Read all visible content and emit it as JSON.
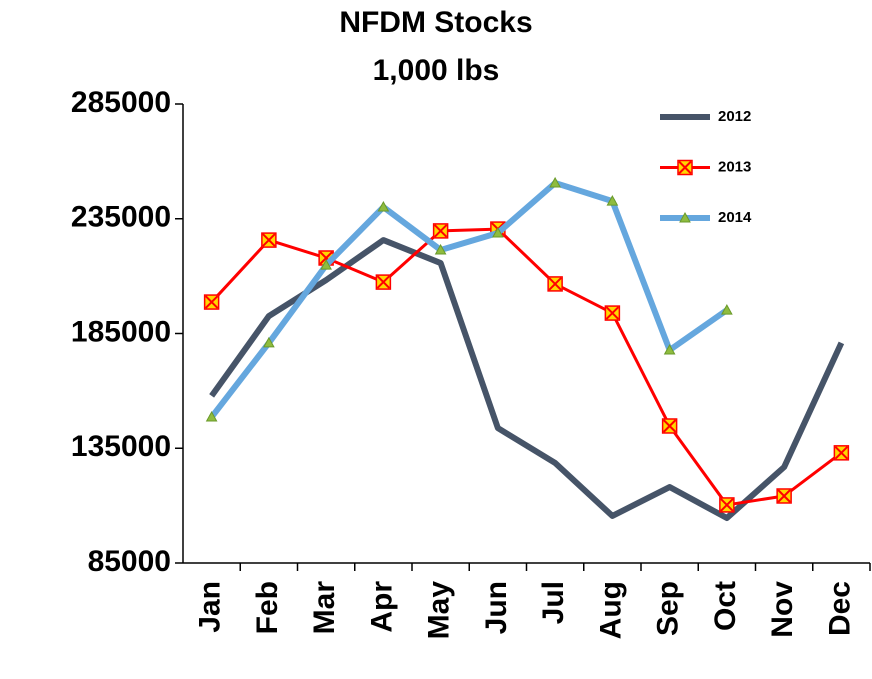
{
  "chart_data": {
    "type": "line",
    "title": "NFDM Stocks",
    "subtitle": "1,000 lbs",
    "categories": [
      "Jan",
      "Feb",
      "Mar",
      "Apr",
      "May",
      "Jun",
      "Jul",
      "Aug",
      "Sep",
      "Oct",
      "Nov",
      "Dec"
    ],
    "series": [
      {
        "name": "2012",
        "color": "#465468",
        "marker": "none",
        "values": [
          157800,
          192600,
          208300,
          225700,
          215700,
          143800,
          128600,
          105500,
          118100,
          104600,
          126800,
          180900
        ]
      },
      {
        "name": "2013",
        "color": "#ff0000",
        "marker": "square",
        "values": [
          198700,
          225700,
          217900,
          207400,
          229700,
          230500,
          206600,
          193900,
          144700,
          110300,
          114200,
          133000
        ]
      },
      {
        "name": "2014",
        "color": "#65a7de",
        "marker": "triangle",
        "values": [
          148600,
          180900,
          214800,
          240100,
          221400,
          228800,
          250600,
          242700,
          177800,
          195200,
          null,
          null
        ]
      }
    ],
    "ylim": [
      85000,
      285000
    ],
    "yticks": [
      85000,
      135000,
      185000,
      235000,
      285000
    ],
    "grid": false,
    "legend": "top-right"
  }
}
